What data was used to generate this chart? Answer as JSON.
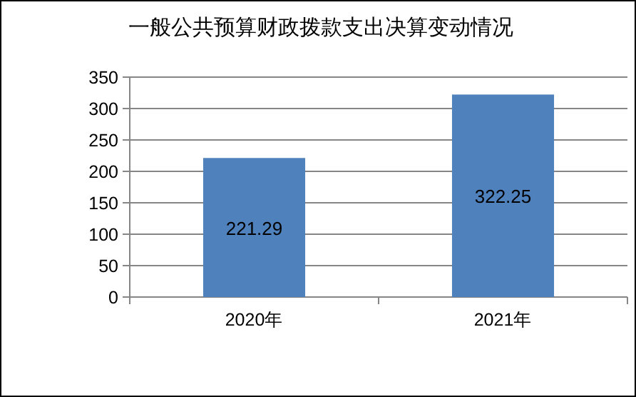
{
  "chart_data": {
    "type": "bar",
    "title": "一般公共预算财政拨款支出决算变动情况",
    "categories": [
      "2020年",
      "2021年"
    ],
    "series": [
      {
        "color": "#4f81bd",
        "values": [
          221.29,
          322.25
        ]
      }
    ],
    "ylim": [
      0,
      350
    ],
    "yticks": [
      0,
      50,
      100,
      150,
      200,
      250,
      300,
      350
    ],
    "grid": "y",
    "data_labels": true
  }
}
